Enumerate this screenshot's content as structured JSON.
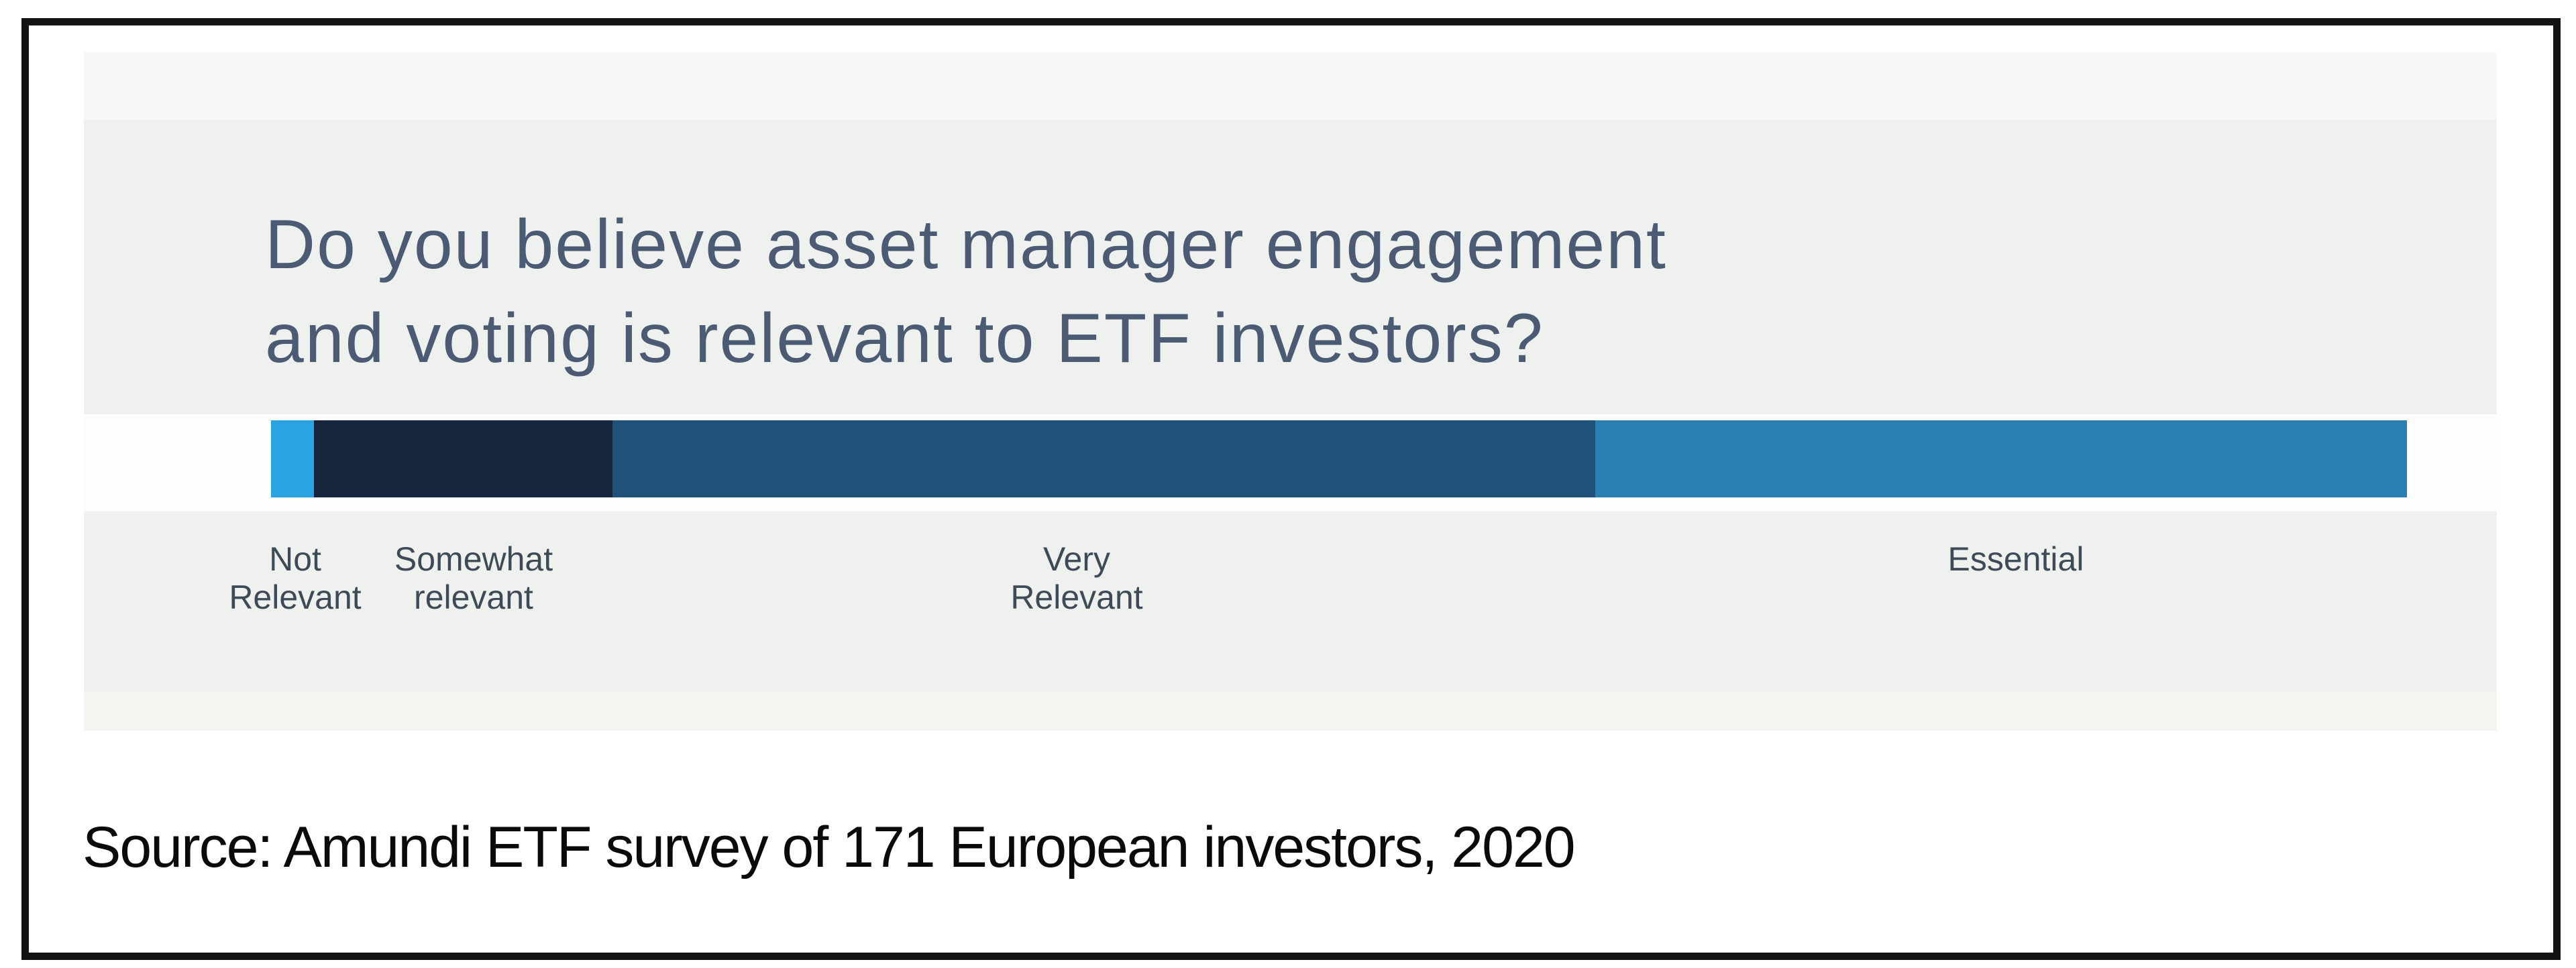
{
  "page": {
    "title_line1": "Do you believe asset manager engagement",
    "title_line2": "and voting is relevant to ETF investors?",
    "source_text": "Source: Amundi ETF survey of 171 European investors, 2020"
  },
  "bar_labels": [
    {
      "text": "Not\nRelevant"
    },
    {
      "text": "Somewhat\nrelevant"
    },
    {
      "text": "Very\nRelevant"
    },
    {
      "text": "Essential"
    }
  ],
  "colors": {
    "title": "#4b5b74",
    "label": "#3e4a56",
    "panel": "#eff1ef",
    "frame": "#131313"
  },
  "chart_data": {
    "type": "bar",
    "subtype": "horizontal-stacked-single-bar",
    "title": "Do you believe asset manager engagement and voting is relevant to ETF investors?",
    "categories": [
      "Not Relevant",
      "Somewhat relevant",
      "Very Relevant",
      "Essential"
    ],
    "values": [
      2,
      14,
      46,
      38
    ],
    "unit": "percent (estimated from segment widths)",
    "colors": [
      "#29a3e2",
      "#16243d",
      "#1f527a",
      "#2a80b2"
    ],
    "legend_position": "below-bar",
    "grid": false,
    "source": "Source: Amundi ETF survey of 171 European investors, 2020"
  }
}
